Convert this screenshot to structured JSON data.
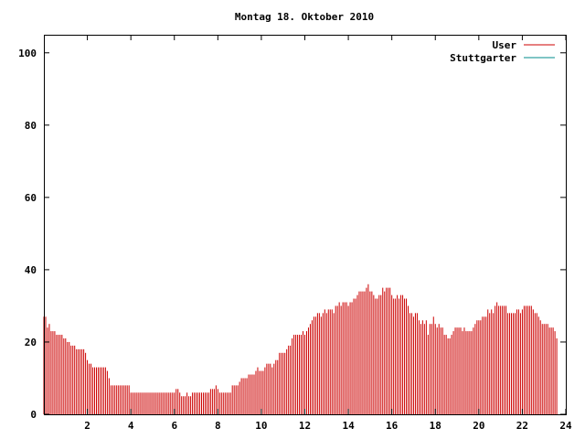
{
  "chart_data": {
    "type": "bar",
    "title": "Montag 18. Oktober 2010",
    "xlim": [
      0,
      24
    ],
    "ylim": [
      0,
      105
    ],
    "x_ticks": [
      {
        "value": 2,
        "label": "2"
      },
      {
        "value": 4,
        "label": "4"
      },
      {
        "value": 6,
        "label": "6"
      },
      {
        "value": 8,
        "label": "8"
      },
      {
        "value": 10,
        "label": "10"
      },
      {
        "value": 12,
        "label": "12"
      },
      {
        "value": 14,
        "label": "14"
      },
      {
        "value": 16,
        "label": "16"
      },
      {
        "value": 18,
        "label": "18"
      },
      {
        "value": 20,
        "label": "20"
      },
      {
        "value": 22,
        "label": "22"
      },
      {
        "value": 24,
        "label": "24"
      }
    ],
    "y_ticks": [
      {
        "value": 0,
        "label": "0"
      },
      {
        "value": 20,
        "label": "20"
      },
      {
        "value": 40,
        "label": "40"
      },
      {
        "value": 60,
        "label": "60"
      },
      {
        "value": 80,
        "label": "80"
      },
      {
        "value": 100,
        "label": "100"
      }
    ],
    "grid": false,
    "legend_position": "top-right",
    "series": [
      {
        "name": "User",
        "color": "#cc0000",
        "step_minutes": 5,
        "values": [
          27,
          27,
          24,
          25,
          23,
          23,
          23,
          22,
          22,
          22,
          22,
          21,
          21,
          20,
          20,
          19,
          19,
          19,
          18,
          18,
          18,
          18,
          18,
          17,
          15,
          14,
          14,
          13,
          13,
          13,
          13,
          13,
          13,
          13,
          13,
          12,
          10,
          8,
          8,
          8,
          8,
          8,
          8,
          8,
          8,
          8,
          8,
          8,
          6,
          6,
          6,
          6,
          6,
          6,
          6,
          6,
          6,
          6,
          6,
          6,
          6,
          6,
          6,
          6,
          6,
          6,
          6,
          6,
          6,
          6,
          6,
          6,
          6,
          7,
          7,
          6,
          5,
          5,
          5,
          6,
          5,
          5,
          6,
          6,
          6,
          6,
          6,
          6,
          6,
          6,
          6,
          6,
          7,
          7,
          7,
          8,
          7,
          6,
          6,
          6,
          6,
          6,
          6,
          6,
          8,
          8,
          8,
          8,
          9,
          10,
          10,
          10,
          10,
          11,
          11,
          11,
          11,
          12,
          13,
          12,
          12,
          12,
          13,
          14,
          14,
          14,
          13,
          14,
          15,
          15,
          17,
          17,
          17,
          17,
          18,
          19,
          19,
          21,
          22,
          22,
          22,
          22,
          22,
          23,
          22,
          23,
          24,
          25,
          26,
          27,
          27,
          28,
          28,
          27,
          28,
          29,
          28,
          29,
          29,
          29,
          28,
          30,
          30,
          31,
          30,
          31,
          31,
          31,
          30,
          31,
          31,
          32,
          32,
          33,
          34,
          34,
          34,
          34,
          35,
          36,
          34,
          34,
          33,
          32,
          32,
          33,
          33,
          35,
          34,
          35,
          35,
          35,
          33,
          32,
          32,
          33,
          32,
          33,
          33,
          32,
          32,
          30,
          28,
          28,
          27,
          28,
          28,
          26,
          25,
          26,
          25,
          26,
          22,
          25,
          25,
          27,
          25,
          24,
          25,
          24,
          24,
          22,
          22,
          21,
          21,
          22,
          23,
          24,
          24,
          24,
          24,
          23,
          24,
          23,
          23,
          23,
          23,
          24,
          25,
          26,
          26,
          26,
          27,
          27,
          27,
          29,
          28,
          29,
          28,
          30,
          31,
          30,
          30,
          30,
          30,
          30,
          28,
          28,
          28,
          28,
          28,
          29,
          29,
          28,
          29,
          30,
          30,
          30,
          30,
          30,
          29,
          28,
          28,
          27,
          26,
          25,
          25,
          25,
          25,
          24,
          24,
          24,
          23,
          21
        ]
      },
      {
        "name": "Stuttgarter",
        "color": "#008b8b",
        "step_minutes": 5,
        "values": []
      }
    ]
  }
}
